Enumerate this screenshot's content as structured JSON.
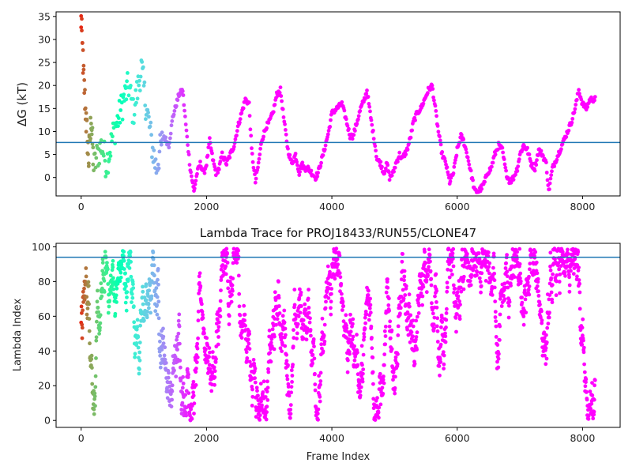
{
  "chart_data": [
    {
      "type": "scatter",
      "title": "",
      "xlabel": "",
      "ylabel": "ΔG (kT)",
      "ylabel_italic_part": "G",
      "xlim": [
        -400,
        8600
      ],
      "ylim": [
        -4,
        36
      ],
      "x_ticks": [
        0,
        2000,
        4000,
        6000,
        8000
      ],
      "x_tick_labels": [
        "0",
        "2000",
        "4000",
        "6000",
        "8000"
      ],
      "y_ticks": [
        0,
        5,
        10,
        15,
        20,
        25,
        30,
        35
      ],
      "y_tick_labels": [
        "0",
        "5",
        "10",
        "15",
        "20",
        "25",
        "30",
        "35"
      ],
      "hline": 7.6,
      "hline_color": "#1f77b4",
      "colormap": "rainbow",
      "x_range": [
        0,
        8200
      ],
      "trace_keypoints": [
        [
          0,
          34
        ],
        [
          40,
          22
        ],
        [
          80,
          12
        ],
        [
          120,
          4
        ],
        [
          160,
          13
        ],
        [
          200,
          2
        ],
        [
          260,
          5
        ],
        [
          330,
          7
        ],
        [
          400,
          3
        ],
        [
          460,
          6
        ],
        [
          520,
          10
        ],
        [
          600,
          13
        ],
        [
          680,
          17
        ],
        [
          760,
          20
        ],
        [
          830,
          14
        ],
        [
          900,
          19
        ],
        [
          960,
          24
        ],
        [
          1020,
          17
        ],
        [
          1080,
          12
        ],
        [
          1140,
          6
        ],
        [
          1200,
          2
        ],
        [
          1260,
          6
        ],
        [
          1320,
          9
        ],
        [
          1400,
          7
        ],
        [
          1460,
          13
        ],
        [
          1560,
          18
        ],
        [
          1620,
          19
        ],
        [
          1680,
          10
        ],
        [
          1740,
          2
        ],
        [
          1800,
          -3
        ],
        [
          1850,
          1
        ],
        [
          1900,
          3
        ],
        [
          1960,
          1
        ],
        [
          2000,
          3
        ],
        [
          2050,
          8
        ],
        [
          2100,
          4
        ],
        [
          2150,
          1
        ],
        [
          2200,
          2
        ],
        [
          2250,
          5
        ],
        [
          2320,
          3
        ],
        [
          2380,
          5
        ],
        [
          2440,
          7
        ],
        [
          2500,
          11
        ],
        [
          2560,
          14
        ],
        [
          2620,
          17
        ],
        [
          2680,
          16
        ],
        [
          2720,
          6
        ],
        [
          2780,
          -1
        ],
        [
          2830,
          3
        ],
        [
          2880,
          8
        ],
        [
          2950,
          11
        ],
        [
          3000,
          12
        ],
        [
          3060,
          14
        ],
        [
          3120,
          18
        ],
        [
          3180,
          19
        ],
        [
          3240,
          12
        ],
        [
          3300,
          6
        ],
        [
          3360,
          3
        ],
        [
          3420,
          5
        ],
        [
          3480,
          1
        ],
        [
          3520,
          3
        ],
        [
          3560,
          2
        ],
        [
          3620,
          2
        ],
        [
          3680,
          1
        ],
        [
          3740,
          0
        ],
        [
          3780,
          1
        ],
        [
          3820,
          3
        ],
        [
          3880,
          6
        ],
        [
          3950,
          10
        ],
        [
          4000,
          14
        ],
        [
          4080,
          15
        ],
        [
          4160,
          16
        ],
        [
          4220,
          13
        ],
        [
          4290,
          9
        ],
        [
          4340,
          9
        ],
        [
          4400,
          12
        ],
        [
          4460,
          15
        ],
        [
          4520,
          17
        ],
        [
          4560,
          19
        ],
        [
          4620,
          13
        ],
        [
          4680,
          8
        ],
        [
          4720,
          4
        ],
        [
          4780,
          3
        ],
        [
          4830,
          1
        ],
        [
          4880,
          3
        ],
        [
          4920,
          0
        ],
        [
          4980,
          1
        ],
        [
          5020,
          3
        ],
        [
          5080,
          5
        ],
        [
          5120,
          4
        ],
        [
          5200,
          6
        ],
        [
          5260,
          9
        ],
        [
          5300,
          12
        ],
        [
          5360,
          14
        ],
        [
          5420,
          15
        ],
        [
          5480,
          17
        ],
        [
          5540,
          19
        ],
        [
          5600,
          20
        ],
        [
          5650,
          15
        ],
        [
          5700,
          10
        ],
        [
          5760,
          5
        ],
        [
          5820,
          3
        ],
        [
          5880,
          -1
        ],
        [
          5940,
          1
        ],
        [
          6000,
          6
        ],
        [
          6060,
          9
        ],
        [
          6100,
          8
        ],
        [
          6160,
          5
        ],
        [
          6220,
          1
        ],
        [
          6280,
          -3
        ],
        [
          6340,
          -3
        ],
        [
          6400,
          -2
        ],
        [
          6440,
          -1
        ],
        [
          6480,
          1
        ],
        [
          6540,
          2
        ],
        [
          6600,
          5
        ],
        [
          6660,
          7
        ],
        [
          6720,
          6
        ],
        [
          6780,
          1
        ],
        [
          6840,
          -1
        ],
        [
          6900,
          0
        ],
        [
          6960,
          2
        ],
        [
          7000,
          5
        ],
        [
          7060,
          7
        ],
        [
          7120,
          6
        ],
        [
          7180,
          3
        ],
        [
          7240,
          2
        ],
        [
          7300,
          6
        ],
        [
          7360,
          5
        ],
        [
          7420,
          3
        ],
        [
          7460,
          -3
        ],
        [
          7520,
          2
        ],
        [
          7580,
          4
        ],
        [
          7640,
          6
        ],
        [
          7700,
          8
        ],
        [
          7760,
          10
        ],
        [
          7820,
          12
        ],
        [
          7880,
          15
        ],
        [
          7940,
          19
        ],
        [
          8000,
          16
        ],
        [
          8060,
          15
        ],
        [
          8120,
          17
        ],
        [
          8200,
          17
        ]
      ]
    },
    {
      "type": "scatter",
      "title": "Lambda Trace for PROJ18433/RUN55/CLONE47",
      "xlabel": "Frame Index",
      "ylabel": "Lambda Index",
      "xlim": [
        -400,
        8600
      ],
      "ylim": [
        -4,
        102
      ],
      "x_ticks": [
        0,
        2000,
        4000,
        6000,
        8000
      ],
      "x_tick_labels": [
        "0",
        "2000",
        "4000",
        "6000",
        "8000"
      ],
      "y_ticks": [
        0,
        20,
        40,
        60,
        80,
        100
      ],
      "y_tick_labels": [
        "0",
        "20",
        "40",
        "60",
        "80",
        "100"
      ],
      "hline": 94,
      "hline_color": "#1f77b4",
      "colormap": "rainbow",
      "x_range": [
        0,
        8200
      ],
      "y_range": [
        0,
        99
      ]
    }
  ]
}
